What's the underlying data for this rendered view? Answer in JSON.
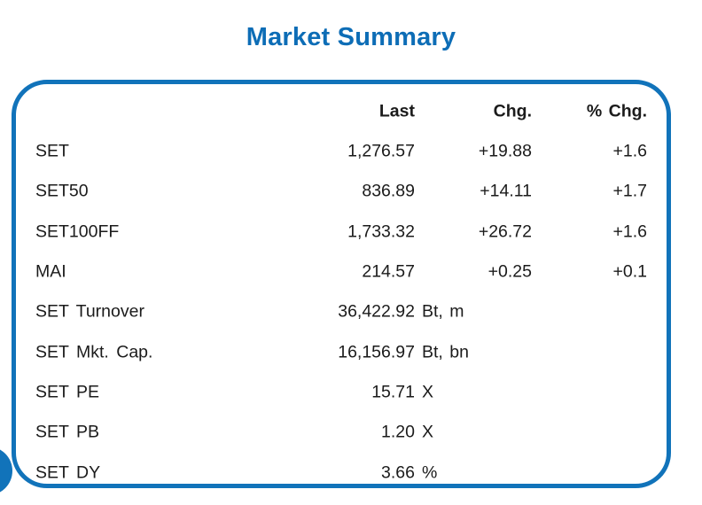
{
  "title": "Market Summary",
  "colors": {
    "accent_blue": "#1173ba",
    "title_blue": "#0d6db6",
    "text": "#1b1b1b"
  },
  "table": {
    "headers": {
      "last": "Last",
      "chg": "Chg.",
      "pchg": "% Chg."
    },
    "rows": [
      {
        "label": "SET",
        "value": "1,276.57",
        "unit": "",
        "chg": "+19.88",
        "pchg": "+1.6"
      },
      {
        "label": "SET50",
        "value": "836.89",
        "unit": "",
        "chg": "+14.11",
        "pchg": "+1.7"
      },
      {
        "label": "SET100FF",
        "value": "1,733.32",
        "unit": "",
        "chg": "+26.72",
        "pchg": "+1.6"
      },
      {
        "label": "MAI",
        "value": "214.57",
        "unit": "",
        "chg": "+0.25",
        "pchg": "+0.1"
      },
      {
        "label": "SET Turnover",
        "value": "36,422.92",
        "unit": "Bt, m",
        "chg": "",
        "pchg": ""
      },
      {
        "label": "SET Mkt. Cap.",
        "value": "16,156.97",
        "unit": "Bt, bn",
        "chg": "",
        "pchg": ""
      },
      {
        "label": "SET PE",
        "value": "15.71",
        "unit": "X",
        "chg": "",
        "pchg": ""
      },
      {
        "label": "SET PB",
        "value": "1.20",
        "unit": "X",
        "chg": "",
        "pchg": ""
      },
      {
        "label": "SET DY",
        "value": "3.66",
        "unit": "%",
        "chg": "",
        "pchg": ""
      }
    ]
  }
}
